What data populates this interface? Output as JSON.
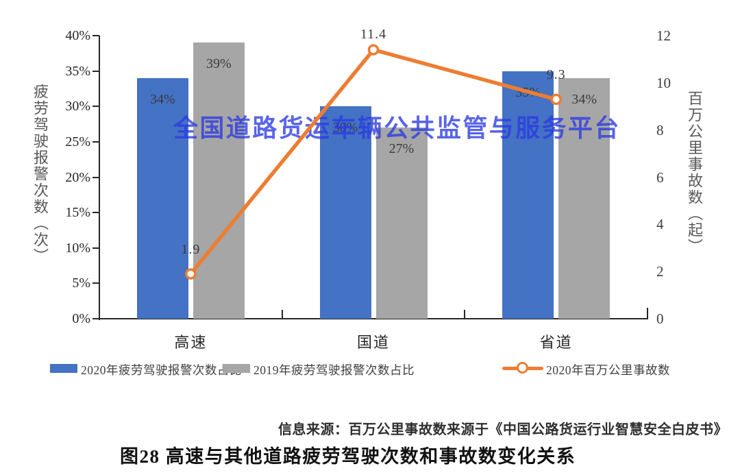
{
  "watermark": {
    "text": "全国道路货运车辆公共监管与服务平台",
    "color": "#2b3ae2"
  },
  "source_note": "信息来源：百万公里事故数来源于《中国公路货运行业智慧安全白皮书》",
  "caption": "图28 高速与其他道路疲劳驾驶次数和事故数变化关系",
  "chart_data": {
    "type": "combo",
    "categories": [
      "高速",
      "国道",
      "省道"
    ],
    "series": [
      {
        "name": "2020年疲劳驾驶报警次数占比",
        "type": "bar",
        "axis": "left",
        "color": "#4472C4",
        "values": [
          34,
          30,
          35
        ],
        "labels": [
          "34%",
          "30%",
          "35%"
        ]
      },
      {
        "name": "2019年疲劳驾驶报警次数占比",
        "type": "bar",
        "axis": "left",
        "color": "#A6A6A6",
        "values": [
          39,
          27,
          34
        ],
        "labels": [
          "39%",
          "27%",
          "34%"
        ]
      },
      {
        "name": "2020年百万公里事故数",
        "type": "line",
        "axis": "right",
        "color": "#ED7D31",
        "marker": "open-circle",
        "values": [
          1.9,
          11.4,
          9.3
        ],
        "labels": [
          "1.9",
          "11.4",
          "9.3"
        ]
      }
    ],
    "left_axis": {
      "label": "疲劳驾驶报警次数（次）",
      "min": 0,
      "max": 40,
      "unit": "%",
      "ticks": [
        "40%",
        "35%",
        "30%",
        "25%",
        "20%",
        "15%",
        "10%",
        "5%",
        "0%"
      ]
    },
    "right_axis": {
      "label": "百万公里事故数（起）",
      "min": 0,
      "max": 12,
      "ticks": [
        "12",
        "10",
        "8",
        "6",
        "4",
        "2",
        "0"
      ]
    },
    "legend_position": "bottom",
    "grid": false
  }
}
